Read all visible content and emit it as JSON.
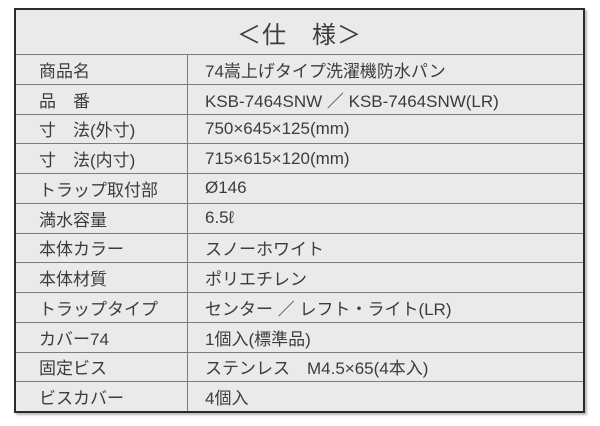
{
  "spec": {
    "title": "＜仕　様＞",
    "rows": [
      {
        "label": "商品名",
        "value": "74嵩上げタイプ洗濯機防水パン"
      },
      {
        "label": "品　番",
        "value": "KSB-7464SNW ／ KSB-7464SNW(LR)"
      },
      {
        "label": "寸　法(外寸)",
        "value": "750×645×125(mm)"
      },
      {
        "label": "寸　法(内寸)",
        "value": "715×615×120(mm)"
      },
      {
        "label": "トラップ取付部",
        "value": "Ø146"
      },
      {
        "label": "満水容量",
        "value": "6.5ℓ"
      },
      {
        "label": "本体カラー",
        "value": "スノーホワイト"
      },
      {
        "label": "本体材質",
        "value": "ポリエチレン"
      },
      {
        "label": "トラップタイプ",
        "value": "センター ／ レフト・ライト(LR)"
      },
      {
        "label": "カバー74",
        "value": "1個入(標準品)"
      },
      {
        "label": "固定ビス",
        "value": "ステンレス　M4.5×65(4本入)"
      },
      {
        "label": "ビスカバー",
        "value": "4個入"
      }
    ],
    "colors": {
      "cell_background": "#eaeaea",
      "outer_border": "#2b2b2b",
      "grid_line": "#7d7d7d",
      "text": "#3c3c3c",
      "page_background": "#ffffff"
    }
  }
}
